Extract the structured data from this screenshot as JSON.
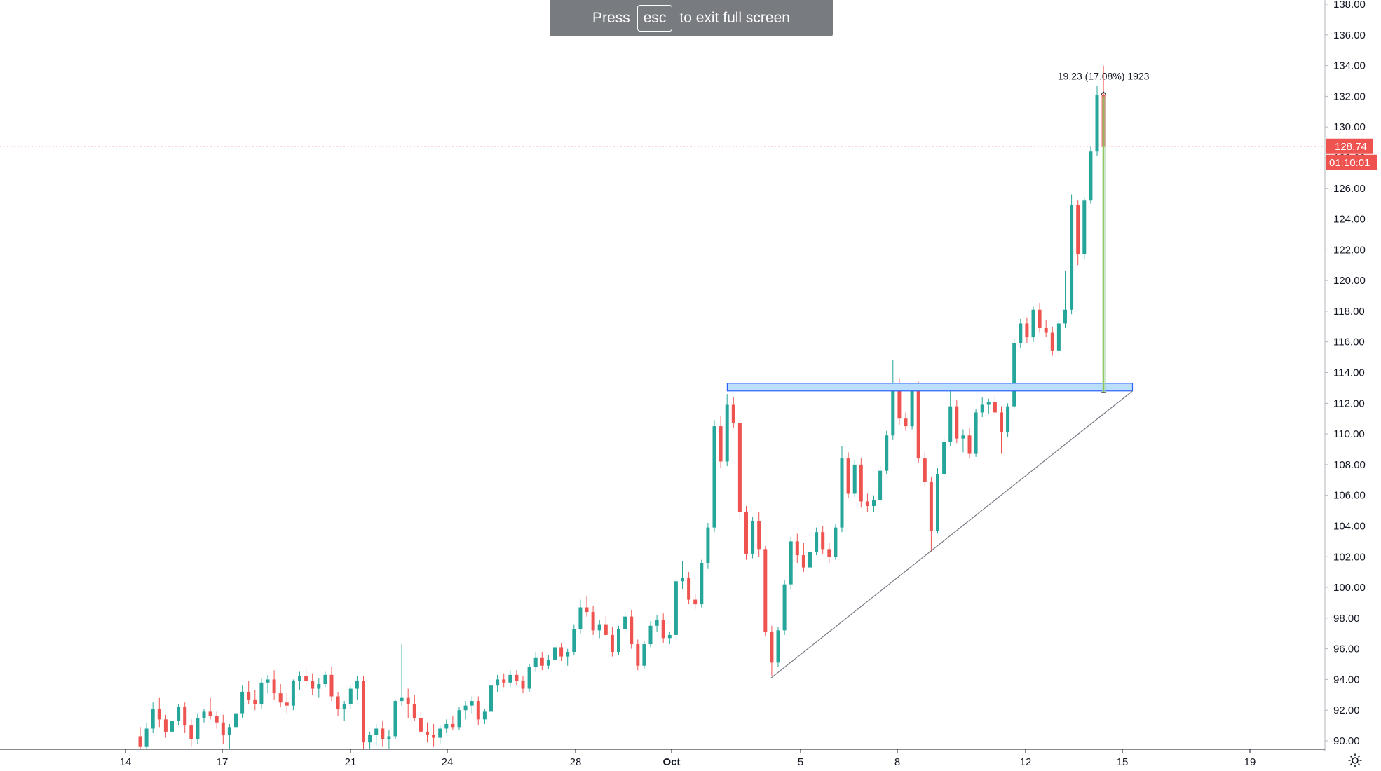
{
  "notice": {
    "press": "Press",
    "key": "esc",
    "rest": "to exit full screen"
  },
  "chart_data": {
    "type": "candlestick",
    "x_ticks": [
      "14",
      "17",
      "21",
      "24",
      "28",
      "Oct",
      "5",
      "8",
      "12",
      "15",
      "19"
    ],
    "y_ticks": [
      "138.00",
      "136.00",
      "134.00",
      "132.00",
      "130.00",
      "128.00",
      "126.00",
      "124.00",
      "122.00",
      "120.00",
      "118.00",
      "116.00",
      "114.00",
      "112.00",
      "110.00",
      "108.00",
      "106.00",
      "104.00",
      "102.00",
      "100.00",
      "98.00",
      "96.00",
      "94.00",
      "92.00",
      "90.00"
    ],
    "ylim": [
      89.8,
      138.3
    ],
    "last_price": {
      "value": 128.74,
      "label": "128.74",
      "countdown": "01:10:01"
    },
    "measure_label": "19.23 (17.08%) 1923",
    "resistance_zone": {
      "low": 112.8,
      "high": 113.3
    },
    "colors": {
      "up": "#26a69a",
      "down": "#ef5350",
      "last_price": "#ef5350",
      "zone": "#2962ff"
    },
    "candles": [
      [
        90.3,
        90.9,
        88.8,
        89.6
      ],
      [
        89.6,
        91.2,
        89.0,
        90.8
      ],
      [
        90.8,
        92.5,
        90.5,
        92.1
      ],
      [
        92.1,
        92.8,
        90.9,
        91.4
      ],
      [
        91.4,
        91.7,
        90.2,
        90.6
      ],
      [
        90.6,
        91.6,
        90.2,
        91.3
      ],
      [
        91.3,
        92.4,
        91.0,
        92.2
      ],
      [
        92.2,
        92.5,
        90.5,
        91.0
      ],
      [
        91.0,
        91.4,
        89.6,
        90.1
      ],
      [
        90.1,
        91.8,
        89.8,
        91.5
      ],
      [
        91.5,
        92.1,
        91.2,
        91.9
      ],
      [
        91.9,
        92.8,
        91.4,
        91.6
      ],
      [
        91.6,
        91.9,
        90.8,
        91.2
      ],
      [
        91.2,
        91.7,
        89.8,
        90.4
      ],
      [
        90.4,
        91.1,
        89.5,
        90.9
      ],
      [
        90.9,
        92.0,
        90.6,
        91.8
      ],
      [
        91.8,
        93.6,
        91.5,
        93.2
      ],
      [
        93.2,
        93.9,
        92.4,
        92.7
      ],
      [
        92.7,
        93.3,
        92.0,
        92.4
      ],
      [
        92.4,
        94.1,
        92.1,
        93.8
      ],
      [
        93.8,
        94.3,
        93.1,
        94.0
      ],
      [
        94.0,
        94.6,
        92.7,
        93.1
      ],
      [
        93.1,
        93.7,
        92.2,
        92.5
      ],
      [
        92.5,
        93.1,
        91.8,
        92.3
      ],
      [
        92.3,
        94.0,
        92.0,
        93.9
      ],
      [
        93.9,
        94.5,
        93.3,
        94.2
      ],
      [
        94.2,
        94.8,
        93.6,
        93.9
      ],
      [
        93.9,
        94.4,
        93.0,
        93.4
      ],
      [
        93.4,
        94.1,
        92.8,
        93.7
      ],
      [
        93.7,
        94.5,
        93.5,
        94.3
      ],
      [
        94.3,
        94.8,
        92.6,
        92.9
      ],
      [
        92.9,
        93.2,
        91.6,
        92.1
      ],
      [
        92.1,
        92.6,
        91.3,
        92.4
      ],
      [
        92.4,
        93.6,
        92.1,
        93.4
      ],
      [
        93.4,
        94.2,
        92.7,
        93.9
      ],
      [
        93.9,
        94.2,
        89.2,
        89.9
      ],
      [
        89.9,
        90.6,
        89.5,
        90.4
      ],
      [
        90.4,
        91.1,
        89.7,
        90.8
      ],
      [
        90.8,
        91.3,
        89.6,
        90.1
      ],
      [
        90.1,
        90.7,
        89.5,
        90.3
      ],
      [
        90.3,
        92.7,
        90.1,
        92.6
      ],
      [
        92.6,
        96.3,
        92.3,
        92.8
      ],
      [
        92.8,
        93.4,
        91.5,
        92.4
      ],
      [
        92.4,
        93.0,
        91.3,
        91.5
      ],
      [
        91.5,
        91.9,
        90.3,
        90.6
      ],
      [
        90.6,
        91.2,
        89.9,
        90.4
      ],
      [
        90.4,
        91.1,
        89.6,
        90.2
      ],
      [
        90.2,
        91.0,
        89.8,
        90.8
      ],
      [
        90.8,
        91.4,
        90.5,
        91.1
      ],
      [
        91.1,
        91.6,
        90.7,
        90.9
      ],
      [
        90.9,
        92.2,
        90.7,
        92.0
      ],
      [
        92.0,
        92.6,
        91.4,
        92.3
      ],
      [
        92.3,
        92.9,
        91.8,
        92.6
      ],
      [
        92.6,
        92.9,
        91.0,
        91.4
      ],
      [
        91.4,
        92.1,
        91.1,
        91.9
      ],
      [
        91.9,
        93.8,
        91.6,
        93.6
      ],
      [
        93.6,
        94.3,
        93.2,
        94.0
      ],
      [
        94.0,
        94.4,
        93.5,
        93.8
      ],
      [
        93.8,
        94.6,
        93.5,
        94.3
      ],
      [
        94.3,
        94.6,
        93.6,
        93.9
      ],
      [
        93.9,
        94.2,
        93.1,
        93.4
      ],
      [
        93.4,
        95.0,
        93.2,
        94.8
      ],
      [
        94.8,
        95.8,
        94.5,
        95.4
      ],
      [
        95.4,
        95.8,
        94.6,
        94.9
      ],
      [
        94.9,
        95.6,
        94.7,
        95.3
      ],
      [
        95.3,
        96.3,
        95.1,
        96.1
      ],
      [
        96.1,
        96.4,
        95.2,
        95.5
      ],
      [
        95.5,
        96.0,
        94.9,
        95.8
      ],
      [
        95.8,
        97.6,
        95.6,
        97.3
      ],
      [
        97.3,
        99.2,
        97.0,
        98.7
      ],
      [
        98.7,
        99.4,
        98.1,
        98.4
      ],
      [
        98.4,
        98.8,
        96.9,
        97.2
      ],
      [
        97.2,
        97.9,
        96.7,
        97.6
      ],
      [
        97.6,
        98.1,
        96.8,
        96.9
      ],
      [
        96.9,
        97.4,
        95.5,
        95.8
      ],
      [
        95.8,
        97.5,
        95.6,
        97.3
      ],
      [
        97.3,
        98.4,
        97.0,
        98.1
      ],
      [
        98.1,
        98.5,
        96.0,
        96.3
      ],
      [
        96.3,
        96.6,
        94.6,
        94.9
      ],
      [
        94.9,
        96.5,
        94.7,
        96.3
      ],
      [
        96.3,
        97.8,
        96.1,
        97.5
      ],
      [
        97.5,
        98.2,
        97.1,
        97.9
      ],
      [
        97.9,
        98.3,
        96.4,
        96.7
      ],
      [
        96.7,
        97.1,
        96.3,
        96.9
      ],
      [
        96.9,
        100.6,
        96.7,
        100.4
      ],
      [
        100.4,
        101.7,
        99.9,
        100.6
      ],
      [
        100.6,
        101.0,
        98.9,
        99.2
      ],
      [
        99.2,
        99.6,
        98.6,
        98.9
      ],
      [
        98.9,
        101.8,
        98.7,
        101.6
      ],
      [
        101.6,
        104.2,
        101.2,
        103.9
      ],
      [
        103.9,
        110.9,
        103.6,
        110.5
      ],
      [
        110.5,
        111.2,
        107.8,
        108.2
      ],
      [
        108.2,
        112.6,
        107.9,
        111.9
      ],
      [
        111.9,
        112.4,
        110.4,
        110.7
      ],
      [
        110.7,
        111.0,
        104.3,
        104.9
      ],
      [
        104.9,
        105.3,
        101.8,
        102.2
      ],
      [
        102.2,
        104.6,
        101.9,
        104.3
      ],
      [
        104.3,
        104.9,
        102.0,
        102.5
      ],
      [
        102.5,
        102.7,
        96.8,
        97.1
      ],
      [
        97.1,
        97.5,
        94.2,
        95.1
      ],
      [
        95.1,
        97.4,
        94.8,
        97.2
      ],
      [
        97.2,
        100.5,
        96.9,
        100.2
      ],
      [
        100.2,
        103.3,
        99.9,
        103.0
      ],
      [
        103.0,
        103.5,
        101.6,
        102.1
      ],
      [
        102.1,
        102.9,
        101.0,
        101.3
      ],
      [
        101.3,
        102.6,
        101.0,
        102.3
      ],
      [
        102.3,
        103.9,
        102.1,
        103.6
      ],
      [
        103.6,
        104.0,
        102.2,
        102.5
      ],
      [
        102.5,
        102.9,
        101.6,
        102.0
      ],
      [
        102.0,
        104.1,
        101.8,
        103.9
      ],
      [
        103.9,
        109.2,
        103.6,
        108.4
      ],
      [
        108.4,
        108.8,
        105.8,
        106.1
      ],
      [
        106.1,
        108.3,
        105.9,
        108.0
      ],
      [
        108.0,
        108.4,
        105.2,
        105.6
      ],
      [
        105.6,
        106.1,
        104.9,
        105.3
      ],
      [
        105.3,
        106.0,
        104.9,
        105.7
      ],
      [
        105.7,
        107.9,
        105.5,
        107.6
      ],
      [
        107.6,
        110.2,
        107.4,
        109.9
      ],
      [
        109.9,
        114.8,
        109.6,
        113.2
      ],
      [
        113.2,
        113.6,
        110.6,
        111.0
      ],
      [
        111.0,
        111.4,
        110.2,
        110.5
      ],
      [
        110.5,
        113.2,
        110.3,
        112.9
      ],
      [
        112.9,
        113.4,
        108.1,
        108.4
      ],
      [
        108.4,
        108.8,
        106.6,
        106.9
      ],
      [
        106.9,
        107.2,
        102.3,
        103.7
      ],
      [
        103.7,
        107.8,
        103.5,
        107.4
      ],
      [
        107.4,
        109.8,
        107.2,
        109.5
      ],
      [
        109.5,
        112.9,
        109.2,
        111.8
      ],
      [
        111.8,
        112.2,
        109.4,
        109.7
      ],
      [
        109.7,
        110.3,
        108.8,
        109.9
      ],
      [
        109.9,
        110.4,
        108.4,
        108.7
      ],
      [
        108.7,
        111.6,
        108.5,
        111.4
      ],
      [
        111.4,
        112.4,
        111.1,
        111.9
      ],
      [
        111.9,
        112.3,
        111.3,
        112.1
      ],
      [
        112.1,
        112.5,
        111.2,
        111.4
      ],
      [
        111.4,
        111.8,
        108.7,
        110.1
      ],
      [
        110.1,
        112.0,
        109.8,
        111.8
      ],
      [
        111.8,
        116.2,
        111.6,
        115.9
      ],
      [
        115.9,
        117.5,
        115.6,
        117.2
      ],
      [
        117.2,
        117.6,
        115.9,
        116.3
      ],
      [
        116.3,
        118.3,
        116.0,
        118.1
      ],
      [
        118.1,
        118.5,
        116.6,
        116.9
      ],
      [
        116.9,
        117.4,
        116.3,
        116.6
      ],
      [
        116.6,
        117.0,
        115.1,
        115.4
      ],
      [
        115.4,
        117.5,
        115.2,
        117.2
      ],
      [
        117.2,
        120.6,
        116.9,
        118.1
      ],
      [
        118.1,
        125.6,
        117.8,
        124.9
      ],
      [
        124.9,
        125.2,
        121.0,
        121.7
      ],
      [
        121.7,
        125.4,
        121.4,
        125.2
      ],
      [
        125.2,
        128.7,
        125.0,
        128.4
      ],
      [
        128.4,
        132.7,
        128.1,
        132.1
      ],
      [
        132.1,
        134.0,
        127.5,
        128.7
      ]
    ]
  }
}
